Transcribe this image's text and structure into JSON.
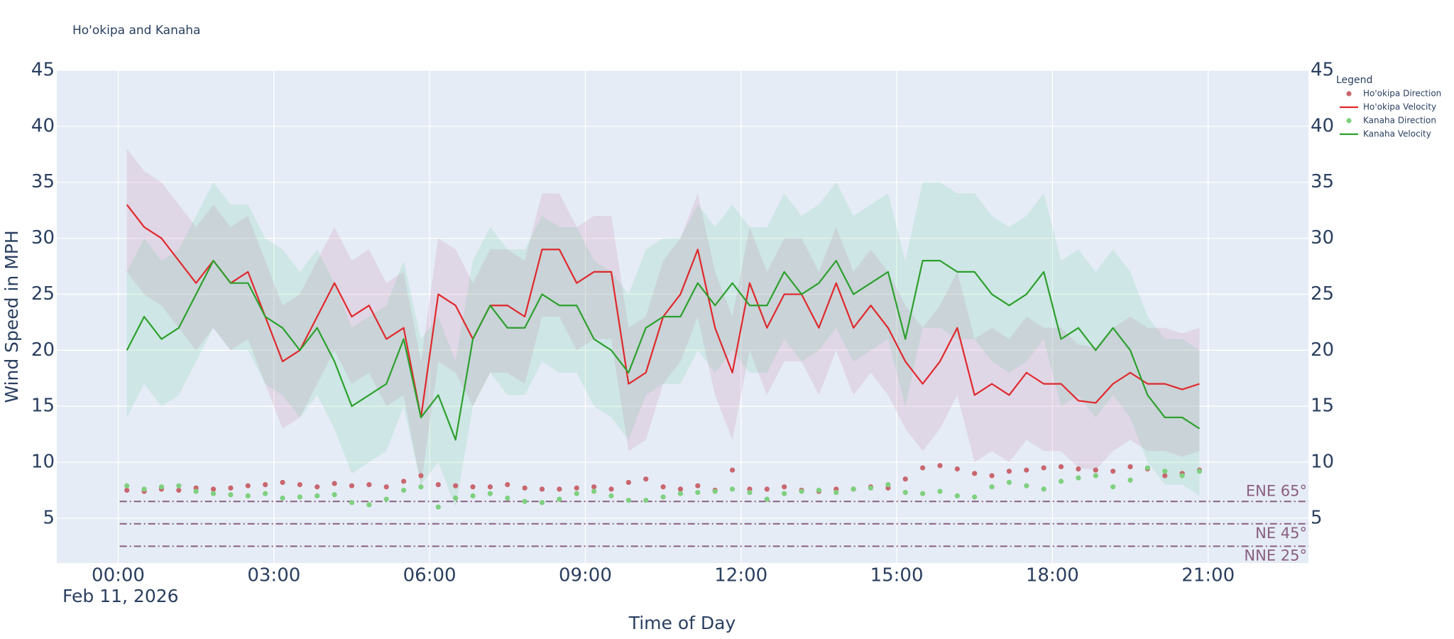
{
  "chart_data": {
    "type": "line",
    "title": "Ho'okipa and Kanaha",
    "y_label": "Wind Speed in MPH",
    "x_label": "Time of Day",
    "x_date_label": "Feb 11, 2026",
    "legend_title": "Legend",
    "legend_position": "top-right",
    "grid": true,
    "xlim": [
      "2026-02-10 22:49",
      "2026-02-11 22:56"
    ],
    "xticks": [
      {
        "value": "2026-02-11 00:00",
        "label": "00:00"
      },
      {
        "value": "2026-02-11 03:00",
        "label": "03:00"
      },
      {
        "value": "2026-02-11 06:00",
        "label": "06:00"
      },
      {
        "value": "2026-02-11 09:00",
        "label": "09:00"
      },
      {
        "value": "2026-02-11 12:00",
        "label": "12:00"
      },
      {
        "value": "2026-02-11 15:00",
        "label": "15:00"
      },
      {
        "value": "2026-02-11 18:00",
        "label": "18:00"
      },
      {
        "value": "2026-02-11 21:00",
        "label": "21:00"
      }
    ],
    "ylim": [
      1,
      45
    ],
    "yticks": [
      5,
      10,
      15,
      20,
      25,
      30,
      35,
      40,
      45
    ],
    "y2lim": [
      1,
      45
    ],
    "y2ticks": [
      5,
      10,
      15,
      20,
      25,
      30,
      35,
      40,
      45
    ],
    "x": [
      "2026-02-11 00:10",
      "2026-02-11 00:30",
      "2026-02-11 00:50",
      "2026-02-11 01:10",
      "2026-02-11 01:30",
      "2026-02-11 01:50",
      "2026-02-11 02:10",
      "2026-02-11 02:30",
      "2026-02-11 02:50",
      "2026-02-11 03:10",
      "2026-02-11 03:30",
      "2026-02-11 03:50",
      "2026-02-11 04:10",
      "2026-02-11 04:30",
      "2026-02-11 04:50",
      "2026-02-11 05:10",
      "2026-02-11 05:30",
      "2026-02-11 05:50",
      "2026-02-11 06:10",
      "2026-02-11 06:30",
      "2026-02-11 06:50",
      "2026-02-11 07:10",
      "2026-02-11 07:30",
      "2026-02-11 07:50",
      "2026-02-11 08:10",
      "2026-02-11 08:30",
      "2026-02-11 08:50",
      "2026-02-11 09:10",
      "2026-02-11 09:30",
      "2026-02-11 09:50",
      "2026-02-11 10:10",
      "2026-02-11 10:30",
      "2026-02-11 10:50",
      "2026-02-11 11:10",
      "2026-02-11 11:30",
      "2026-02-11 11:50",
      "2026-02-11 12:10",
      "2026-02-11 12:30",
      "2026-02-11 12:50",
      "2026-02-11 13:10",
      "2026-02-11 13:30",
      "2026-02-11 13:50",
      "2026-02-11 14:10",
      "2026-02-11 14:30",
      "2026-02-11 14:50",
      "2026-02-11 15:10",
      "2026-02-11 15:30",
      "2026-02-11 15:50",
      "2026-02-11 16:10",
      "2026-02-11 16:30",
      "2026-02-11 16:50",
      "2026-02-11 17:10",
      "2026-02-11 17:30",
      "2026-02-11 17:50",
      "2026-02-11 18:10",
      "2026-02-11 18:30",
      "2026-02-11 18:50",
      "2026-02-11 19:10",
      "2026-02-11 19:30",
      "2026-02-11 19:50",
      "2026-02-11 20:10",
      "2026-02-11 20:30",
      "2026-02-11 20:50"
    ],
    "series": [
      {
        "name": "Ho'okipa Direction",
        "mode": "markers",
        "color": "#c9666e",
        "axis": "y2",
        "values": [
          7.5,
          7.4,
          7.6,
          7.5,
          7.7,
          7.6,
          7.7,
          7.9,
          8.0,
          8.2,
          8.0,
          7.8,
          8.1,
          7.9,
          8.0,
          7.8,
          8.3,
          8.8,
          8.0,
          7.9,
          7.8,
          7.8,
          8.0,
          7.7,
          7.6,
          7.6,
          7.7,
          7.8,
          7.6,
          8.2,
          8.5,
          7.8,
          7.6,
          7.9,
          7.5,
          9.3,
          7.6,
          7.6,
          7.8,
          7.5,
          7.4,
          7.6,
          7.6,
          7.8,
          7.7,
          8.5,
          9.5,
          9.7,
          9.4,
          9.0,
          8.8,
          9.2,
          9.3,
          9.5,
          9.6,
          9.4,
          9.3,
          9.2,
          9.6,
          9.4,
          8.8,
          9.0,
          9.3
        ]
      },
      {
        "name": "Ho'okipa Velocity",
        "mode": "lines",
        "color": "#e0282b",
        "band_color": "rgba(190,100,150,0.16)",
        "values": [
          33,
          31,
          30,
          28,
          26,
          28,
          26,
          27,
          23,
          19,
          20,
          23,
          26,
          23,
          24,
          21,
          22,
          14,
          25,
          24,
          21,
          24,
          24,
          23,
          29,
          29,
          26,
          27,
          27,
          17,
          18,
          23,
          25,
          29,
          22,
          18,
          26,
          22,
          25,
          25,
          22,
          26,
          22,
          24,
          22,
          19,
          17,
          19,
          22,
          16,
          17,
          16,
          18,
          17,
          17,
          15.5,
          15.3,
          17,
          18,
          17,
          17,
          16.5,
          17
        ],
        "lower": [
          27,
          25,
          24,
          22,
          20,
          22,
          20,
          21,
          17,
          13,
          14,
          17,
          20,
          17,
          18,
          15,
          16,
          8,
          19,
          18,
          15,
          18,
          18,
          17,
          23,
          23,
          20,
          21,
          21,
          11,
          12,
          17,
          19,
          23,
          16,
          12,
          20,
          16,
          19,
          19,
          16,
          20,
          16,
          18,
          16,
          13,
          11,
          13,
          16,
          10,
          11,
          10,
          12,
          11,
          11,
          9.5,
          9.3,
          11,
          12,
          11,
          11,
          10.5,
          11
        ],
        "upper": [
          38,
          36,
          35,
          33,
          31,
          33,
          31,
          32,
          28,
          24,
          25,
          28,
          31,
          28,
          29,
          26,
          27,
          19,
          30,
          29,
          26,
          29,
          29,
          28,
          34,
          34,
          31,
          32,
          32,
          22,
          23,
          28,
          30,
          34,
          27,
          23,
          31,
          27,
          30,
          30,
          27,
          31,
          27,
          29,
          27,
          24,
          22,
          24,
          27,
          21,
          22,
          21,
          23,
          22,
          22,
          20.5,
          20.3,
          22,
          23,
          22,
          22,
          21.5,
          22
        ]
      },
      {
        "name": "Kanaha Direction",
        "mode": "markers",
        "color": "#7fd07f",
        "axis": "y2",
        "values": [
          7.9,
          7.6,
          7.8,
          7.9,
          7.4,
          7.2,
          7.1,
          7.0,
          7.2,
          6.8,
          6.9,
          7.0,
          7.1,
          6.4,
          6.2,
          6.7,
          7.5,
          7.8,
          6.0,
          6.8,
          7.0,
          7.2,
          6.8,
          6.5,
          6.4,
          6.7,
          7.2,
          7.4,
          7.0,
          6.6,
          6.6,
          6.9,
          7.2,
          7.3,
          7.4,
          7.6,
          7.3,
          6.7,
          7.2,
          7.4,
          7.5,
          7.3,
          7.6,
          7.7,
          8.0,
          7.3,
          7.2,
          7.4,
          7.0,
          6.9,
          7.8,
          8.2,
          7.9,
          7.6,
          8.3,
          8.6,
          8.8,
          7.8,
          8.4,
          9.5,
          9.2,
          8.8,
          9.2
        ]
      },
      {
        "name": "Kanaha Velocity",
        "mode": "lines",
        "color": "#2ca02c",
        "band_color": "rgba(90,200,140,0.16)",
        "values": [
          20,
          23,
          21,
          22,
          25,
          28,
          26,
          26,
          23,
          22,
          20,
          22,
          19,
          15,
          16,
          17,
          21,
          14,
          16,
          12,
          21,
          24,
          22,
          22,
          25,
          24,
          24,
          21,
          20,
          18,
          22,
          23,
          23,
          26,
          24,
          26,
          24,
          24,
          27,
          25,
          26,
          28,
          25,
          26,
          27,
          21,
          28,
          28,
          27,
          27,
          25,
          24,
          25,
          27,
          21,
          22,
          20,
          22,
          20,
          16,
          14,
          14,
          13
        ],
        "lower": [
          14,
          17,
          15,
          16,
          19,
          22,
          20,
          20,
          17,
          16,
          14,
          16,
          13,
          9,
          10,
          11,
          15,
          8,
          10,
          6,
          15,
          18,
          16,
          16,
          19,
          18,
          18,
          15,
          14,
          12,
          16,
          17,
          17,
          20,
          18,
          20,
          18,
          18,
          21,
          19,
          20,
          22,
          19,
          20,
          21,
          15,
          22,
          22,
          21,
          21,
          19,
          18,
          19,
          21,
          15,
          16,
          14,
          16,
          14,
          10,
          8,
          8,
          7
        ],
        "upper": [
          27,
          30,
          28,
          29,
          32,
          35,
          33,
          33,
          30,
          29,
          27,
          29,
          26,
          22,
          23,
          24,
          28,
          21,
          23,
          19,
          28,
          31,
          29,
          29,
          32,
          31,
          31,
          28,
          27,
          25,
          29,
          30,
          30,
          33,
          31,
          33,
          31,
          31,
          34,
          32,
          33,
          35,
          32,
          33,
          34,
          28,
          35,
          35,
          34,
          34,
          32,
          31,
          32,
          34,
          28,
          29,
          27,
          29,
          27,
          23,
          21,
          21,
          20
        ]
      }
    ],
    "reference_lines": [
      {
        "value": 6.5,
        "label": "ENE 65°",
        "label_position": "above",
        "color": "#8a5f80"
      },
      {
        "value": 4.5,
        "label": "NE 45°",
        "label_position": "below",
        "color": "#8a5f80"
      },
      {
        "value": 2.5,
        "label": "NNE 25°",
        "label_position": "below",
        "color": "#8a5f80"
      }
    ]
  }
}
